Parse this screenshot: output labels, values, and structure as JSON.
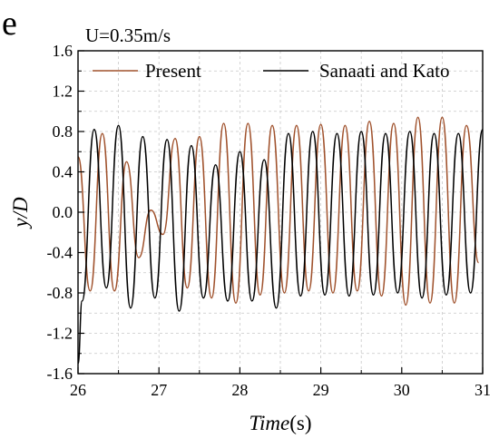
{
  "panel_label": "e",
  "chart_data": {
    "type": "line",
    "title": "U=0.35m/s",
    "xlabel_italic": "Time",
    "xlabel_unit": "(s)",
    "ylabel": "y/D",
    "xlim": [
      26,
      31
    ],
    "ylim": [
      -1.6,
      1.6
    ],
    "x_ticks": [
      "26",
      "27",
      "28",
      "29",
      "30",
      "31"
    ],
    "y_ticks": [
      "-1.6",
      "-1.2",
      "-0.8",
      "-0.4",
      "0.0",
      "0.4",
      "0.8",
      "1.2",
      "1.6"
    ],
    "grid": true,
    "legend_position": "top",
    "series": [
      {
        "name": "Present",
        "color": "#a0522d",
        "x": [
          26.0,
          26.15,
          26.3,
          26.45,
          26.6,
          26.75,
          26.9,
          27.05,
          27.2,
          27.35,
          27.5,
          27.65,
          27.8,
          27.95,
          28.1,
          28.25,
          28.4,
          28.55,
          28.7,
          28.85,
          29.0,
          29.15,
          29.3,
          29.45,
          29.6,
          29.75,
          29.9,
          30.05,
          30.2,
          30.35,
          30.5,
          30.65,
          30.8,
          30.95
        ],
        "y": [
          0.55,
          -0.78,
          0.78,
          -0.78,
          0.5,
          -0.45,
          0.02,
          -0.22,
          0.73,
          -0.75,
          0.75,
          -0.85,
          0.88,
          -0.9,
          0.88,
          -0.82,
          0.86,
          -0.8,
          0.86,
          -0.78,
          0.87,
          -0.8,
          0.86,
          -0.78,
          0.9,
          -0.83,
          0.88,
          -0.92,
          0.94,
          -0.9,
          0.94,
          -0.9,
          0.86,
          -0.5
        ]
      },
      {
        "name": "Sanaati and Kato",
        "color": "#000000",
        "x": [
          26.0,
          26.05,
          26.2,
          26.35,
          26.5,
          26.65,
          26.8,
          26.95,
          27.1,
          27.25,
          27.4,
          27.55,
          27.7,
          27.85,
          28.0,
          28.15,
          28.3,
          28.45,
          28.6,
          28.75,
          28.9,
          29.05,
          29.2,
          29.35,
          29.5,
          29.65,
          29.8,
          29.95,
          30.1,
          30.25,
          30.4,
          30.55,
          30.7,
          30.85,
          31.0
        ],
        "y": [
          -1.5,
          -0.88,
          0.82,
          -0.75,
          0.86,
          -0.95,
          0.75,
          -0.85,
          0.72,
          -0.98,
          0.66,
          -0.85,
          0.47,
          -0.88,
          0.6,
          -0.88,
          0.52,
          -0.95,
          0.78,
          -0.83,
          0.8,
          -0.82,
          0.78,
          -0.83,
          0.8,
          -0.82,
          0.78,
          -0.8,
          0.8,
          -0.85,
          0.78,
          -0.82,
          0.78,
          -0.8,
          0.82
        ]
      }
    ]
  }
}
